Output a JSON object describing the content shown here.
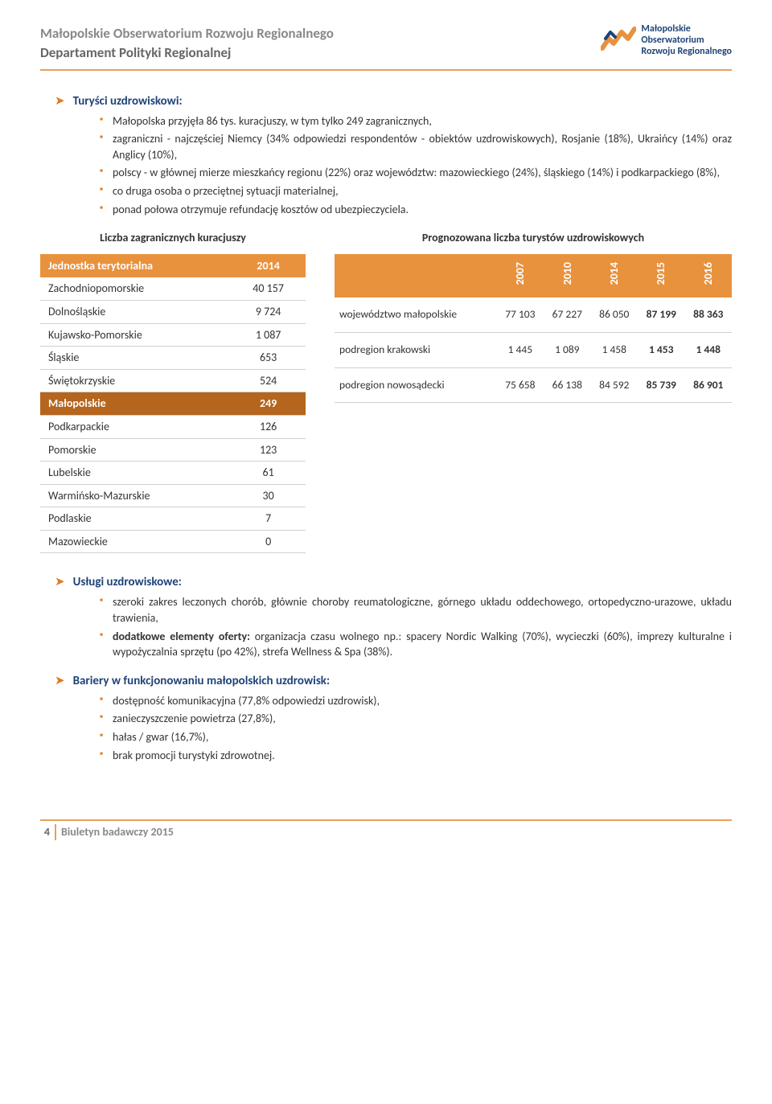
{
  "header": {
    "title1": "Małopolskie Obserwatorium Rozwoju Regionalnego",
    "title2": "Departament Polityki Regionalnej",
    "logo": {
      "line1": "Małopolskie",
      "line2": "Obserwatorium",
      "line3": "Rozwoju Regionalnego",
      "colors": {
        "orange": "#e8923e",
        "navy": "#1f4378"
      }
    }
  },
  "section1": {
    "heading": "Turyści uzdrowiskowi:",
    "items": [
      "Małopolska przyjęła 86 tys. kuracjuszy, w tym tylko 249 zagranicznych,",
      "zagraniczni - najczęściej Niemcy (34% odpowiedzi respondentów - obiektów uzdrowiskowych), Rosjanie (18%), Ukraińcy (14%) oraz Anglicy (10%),",
      "polscy - w głównej mierze mieszkańcy regionu (22%) oraz województw: mazowieckiego (24%), śląskiego (14%) i podkarpackiego (8%),",
      "co druga osoba o przeciętnej sytuacji materialnej,",
      "ponad połowa otrzymuje refundację kosztów od ubezpieczyciela."
    ]
  },
  "table1": {
    "title": "Liczba zagranicznych kuracjuszy",
    "columns": [
      "Jednostka terytorialna",
      "2014"
    ],
    "rows": [
      [
        "Zachodniopomorskie",
        "40 157"
      ],
      [
        "Dolnośląskie",
        "9 724"
      ],
      [
        "Kujawsko-Pomorskie",
        "1 087"
      ],
      [
        "Śląskie",
        "653"
      ],
      [
        "Świętokrzyskie",
        "524"
      ],
      [
        "Małopolskie",
        "249"
      ],
      [
        "Podkarpackie",
        "126"
      ],
      [
        "Pomorskie",
        "123"
      ],
      [
        "Lubelskie",
        "61"
      ],
      [
        "Warmińsko-Mazurskie",
        "30"
      ],
      [
        "Podlaskie",
        "7"
      ],
      [
        "Mazowieckie",
        "0"
      ]
    ],
    "highlight_row_index": 5
  },
  "table2": {
    "title": "Prognozowana liczba turystów uzdrowiskowych",
    "year_cols": [
      "2007",
      "2010",
      "2014",
      "2015",
      "2016"
    ],
    "rows": [
      {
        "label": "województwo małopolskie",
        "vals": [
          "77 103",
          "67 227",
          "86 050",
          "87 199",
          "88 363"
        ]
      },
      {
        "label": "podregion krakowski",
        "vals": [
          "1 445",
          "1 089",
          "1 458",
          "1 453",
          "1 448"
        ]
      },
      {
        "label": "podregion nowosądecki",
        "vals": [
          "75 658",
          "66 138",
          "84 592",
          "85 739",
          "86 901"
        ]
      }
    ],
    "bold_col_indices": [
      3,
      4
    ]
  },
  "section2": {
    "heading": "Usługi uzdrowiskowe:",
    "items": [
      "szeroki zakres leczonych chorób, głównie choroby reumatologiczne, górnego układu oddechowego, ortopedyczno-urazowe, układu trawienia,",
      "dodatkowe elementy oferty: organizacja czasu wolnego np.: spacery Nordic Walking (70%), wycieczki (60%), imprezy kulturalne i wypożyczalnia sprzętu (po 42%), strefa Wellness & Spa (38%)."
    ]
  },
  "section3": {
    "heading": "Bariery w funkcjonowaniu małopolskich uzdrowisk:",
    "items": [
      "dostępność komunikacyjna (77,8% odpowiedzi uzdrowisk),",
      "zanieczyszczenie powietrza (27,8%),",
      "hałas / gwar (16,7%),",
      "brak promocji turystyki zdrowotnej."
    ]
  },
  "footer": {
    "page": "4",
    "text": "Biuletyn badawczy 2015"
  }
}
